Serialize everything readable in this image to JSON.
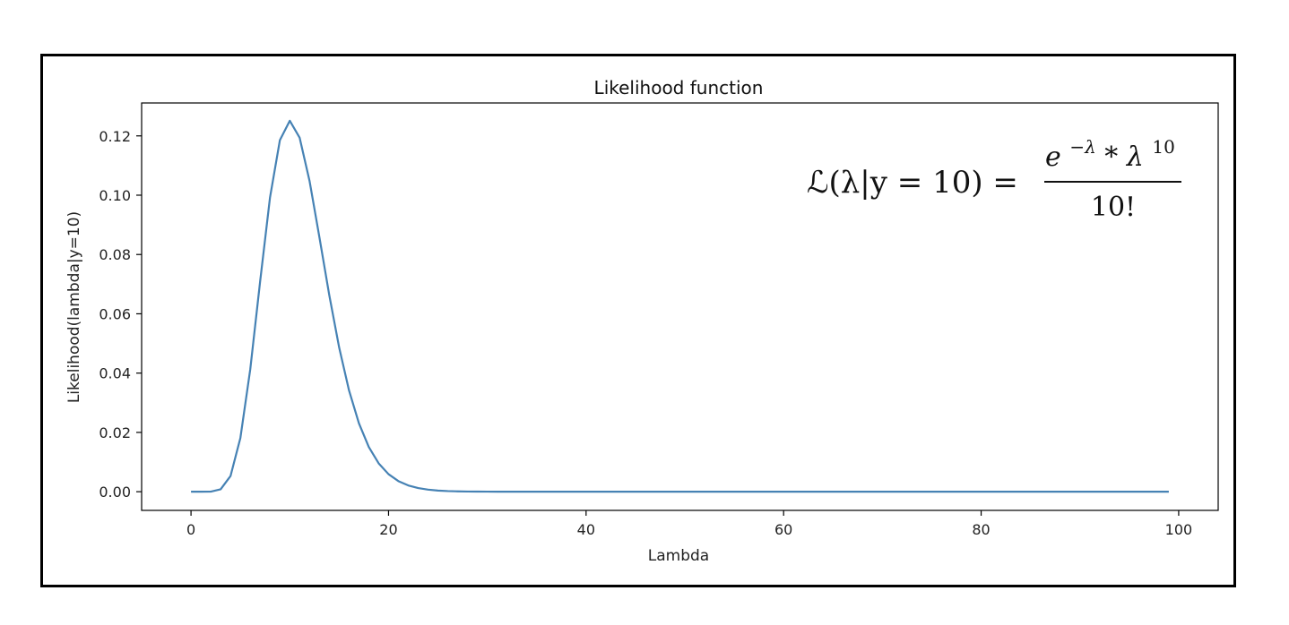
{
  "chart_data": {
    "type": "line",
    "title": "Likelihood function",
    "xlabel": "Lambda",
    "ylabel": "Likelihood(lambda|y=10)",
    "xlim": [
      -5,
      104
    ],
    "ylim": [
      -0.0063,
      0.1311
    ],
    "xticks": [
      0,
      20,
      40,
      60,
      80,
      100
    ],
    "yticks": [
      0.0,
      0.02,
      0.04,
      0.06,
      0.08,
      0.1,
      0.12
    ],
    "xtick_labels": [
      "0",
      "20",
      "40",
      "60",
      "80",
      "100"
    ],
    "ytick_labels": [
      "0.00",
      "0.02",
      "0.04",
      "0.06",
      "0.08",
      "0.10",
      "0.12"
    ],
    "grid": false,
    "series": [
      {
        "color": "#4682b4",
        "x": [
          0,
          1,
          2,
          3,
          4,
          5,
          6,
          7,
          8,
          9,
          10,
          11,
          12,
          13,
          14,
          15,
          16,
          17,
          18,
          19,
          20,
          21,
          22,
          23,
          24,
          25,
          26,
          27,
          28,
          29,
          30,
          31,
          32,
          33,
          34,
          35,
          36,
          37,
          38,
          39,
          40,
          41,
          42,
          43,
          44,
          45,
          46,
          47,
          48,
          49,
          50,
          51,
          52,
          53,
          54,
          55,
          56,
          57,
          58,
          59,
          60,
          61,
          62,
          63,
          64,
          65,
          66,
          67,
          68,
          69,
          70,
          71,
          72,
          73,
          74,
          75,
          76,
          77,
          78,
          79,
          80,
          81,
          82,
          83,
          84,
          85,
          86,
          87,
          88,
          89,
          90,
          91,
          92,
          93,
          94,
          95,
          96,
          97,
          98,
          99
        ],
        "y": [
          0,
          1e-07,
          1.91e-05,
          0.0008102,
          0.0052925,
          0.0181328,
          0.041303,
          0.0709833,
          0.0992615,
          0.1185801,
          0.12511,
          0.1193781,
          0.1048373,
          0.0858356,
          0.0662654,
          0.0486107,
          0.034141,
          0.023074,
          0.0150778,
          0.0095645,
          0.0059103,
          0.0035684,
          0.0021086,
          0.0012217,
          0.000695,
          0.0003887,
          0.0002139,
          0.0001159,
          6.19e-05,
          3.26e-05,
          1.7e-05,
          8.7e-06,
          4.4e-06,
          2.2e-06,
          1.1e-06,
          5e-07,
          3e-07,
          1e-07,
          1e-07,
          0,
          0,
          0,
          0,
          0,
          0,
          0,
          0,
          0,
          0,
          0,
          0,
          0,
          0,
          0,
          0,
          0,
          0,
          0,
          0,
          0,
          0,
          0,
          0,
          0,
          0,
          0,
          0,
          0,
          0,
          0,
          0,
          0,
          0,
          0,
          0,
          0,
          0,
          0,
          0,
          0,
          0,
          0,
          0,
          0,
          0,
          0,
          0,
          0,
          0,
          0,
          0,
          0,
          0,
          0,
          0,
          0,
          0,
          0,
          0,
          0
        ]
      }
    ],
    "annotation": {
      "lhs": "ℒ(λ|y = 10) =",
      "numerator_base": "e",
      "numerator_exp": "−λ",
      "numerator_op": " * λ",
      "numerator_power": "10",
      "denominator": "10!"
    }
  }
}
